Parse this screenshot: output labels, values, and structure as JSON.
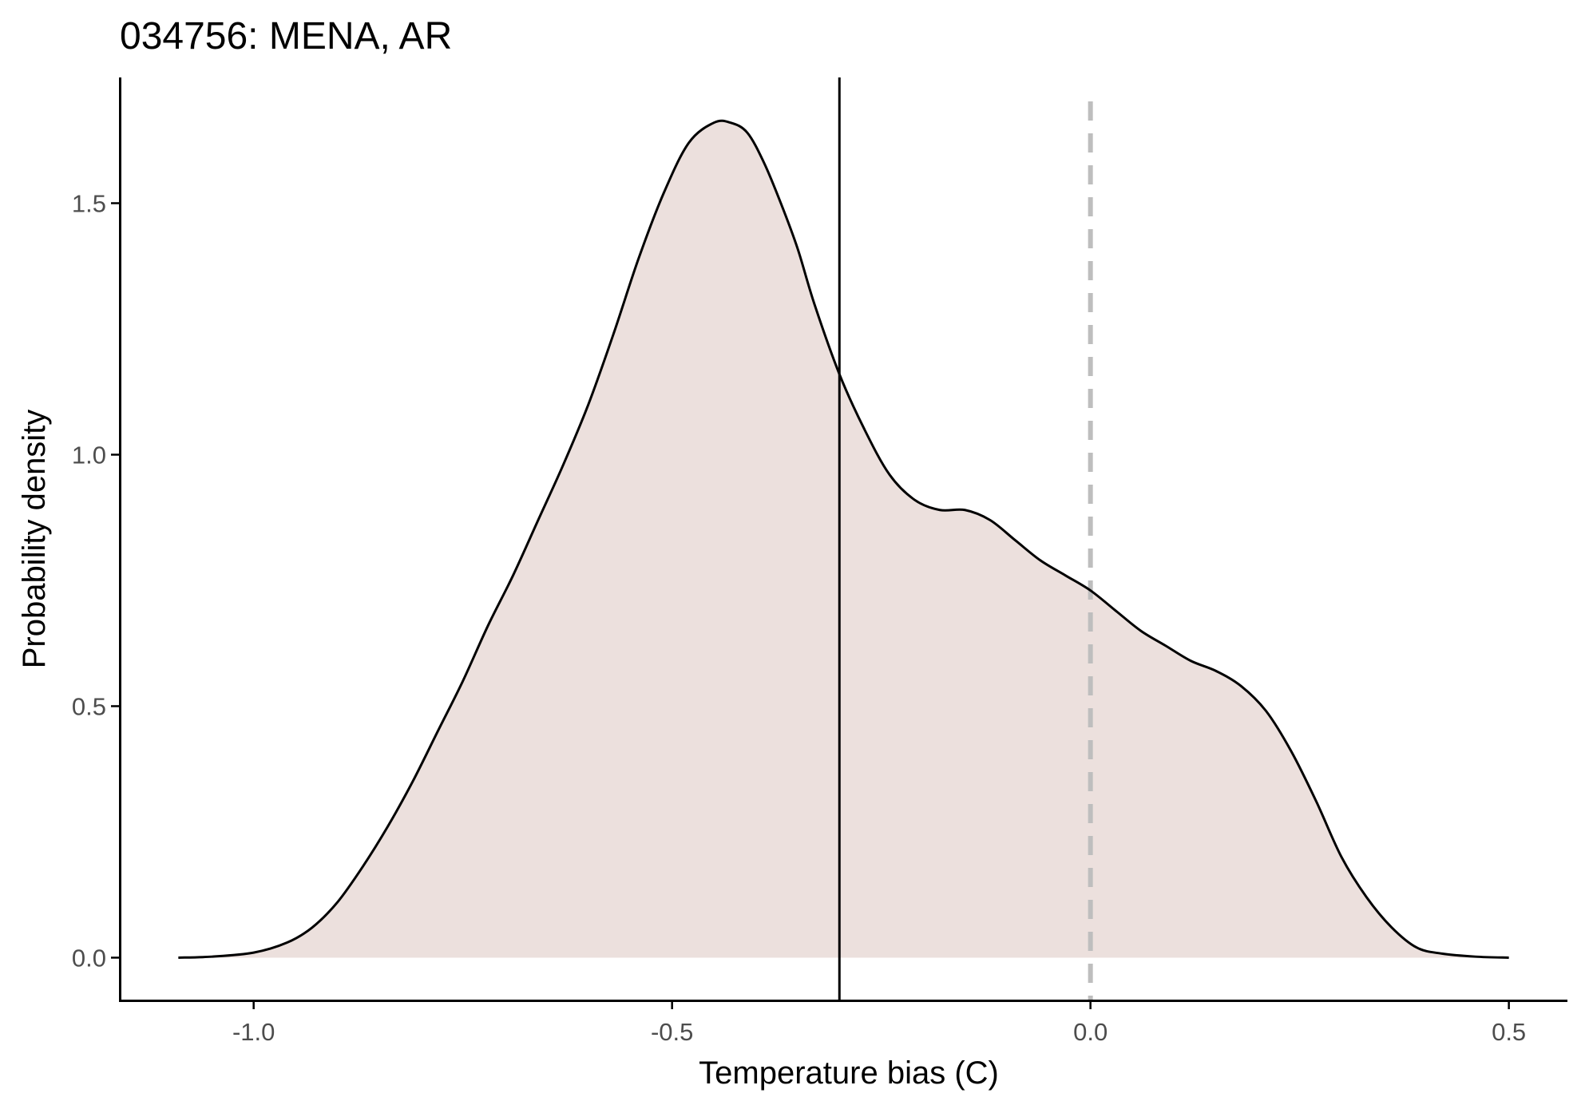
{
  "chart_data": {
    "type": "area",
    "title": "034756: MENA, AR",
    "xlabel": "Temperature bias (C)",
    "ylabel": "Probability density",
    "xlim": [
      -1.16,
      0.57
    ],
    "ylim": [
      -0.085,
      1.75
    ],
    "x_ticks": [
      -1.0,
      -0.5,
      0.0,
      0.5
    ],
    "x_tick_labels": [
      "-1.0",
      "-0.5",
      "0.0",
      "0.5"
    ],
    "y_ticks": [
      0.0,
      0.5,
      1.0,
      1.5
    ],
    "y_tick_labels": [
      "0.0",
      "0.5",
      "1.0",
      "1.5"
    ],
    "grid": false,
    "fill_color": "#ece0dd",
    "line_color": "#000000",
    "series": [
      {
        "x": [
          -1.09,
          -1.05,
          -1.0,
          -0.96,
          -0.93,
          -0.9,
          -0.87,
          -0.84,
          -0.81,
          -0.78,
          -0.75,
          -0.72,
          -0.69,
          -0.66,
          -0.63,
          -0.6,
          -0.57,
          -0.54,
          -0.51,
          -0.48,
          -0.45,
          -0.43,
          -0.41,
          -0.39,
          -0.37,
          -0.35,
          -0.33,
          -0.3,
          -0.27,
          -0.24,
          -0.21,
          -0.18,
          -0.15,
          -0.12,
          -0.09,
          -0.06,
          -0.03,
          0.0,
          0.03,
          0.06,
          0.09,
          0.12,
          0.15,
          0.18,
          0.21,
          0.24,
          0.27,
          0.3,
          0.33,
          0.36,
          0.39,
          0.42,
          0.46,
          0.5
        ],
        "y": [
          0.0,
          0.002,
          0.01,
          0.03,
          0.06,
          0.11,
          0.18,
          0.26,
          0.35,
          0.45,
          0.55,
          0.66,
          0.76,
          0.87,
          0.98,
          1.1,
          1.24,
          1.39,
          1.52,
          1.62,
          1.66,
          1.66,
          1.64,
          1.58,
          1.5,
          1.41,
          1.3,
          1.16,
          1.05,
          0.96,
          0.91,
          0.89,
          0.89,
          0.87,
          0.83,
          0.79,
          0.76,
          0.73,
          0.69,
          0.65,
          0.62,
          0.59,
          0.57,
          0.54,
          0.49,
          0.41,
          0.31,
          0.2,
          0.12,
          0.06,
          0.02,
          0.008,
          0.002,
          0.0
        ]
      }
    ],
    "reference_lines": [
      {
        "x": -0.3,
        "style": "solid",
        "color": "#000000"
      },
      {
        "x": 0.0,
        "style": "dashed",
        "color": "#bebebe"
      }
    ]
  }
}
